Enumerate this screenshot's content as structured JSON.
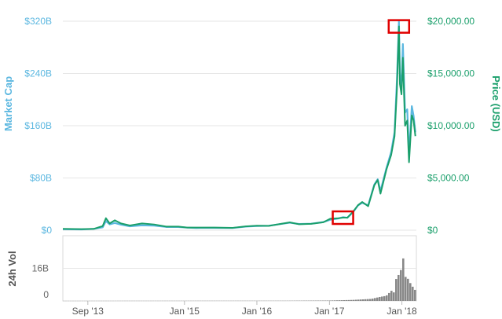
{
  "chart_data": {
    "type": "line",
    "left_axis": {
      "label": "Market Cap",
      "ticks": [
        "$0",
        "$80B",
        "$160B",
        "$240B",
        "$320B"
      ],
      "tick_values": [
        0,
        80,
        160,
        240,
        320
      ],
      "ylim": [
        0,
        320
      ],
      "unit": "billion USD"
    },
    "right_axis": {
      "label": "Price (USD)",
      "ticks": [
        "$0",
        "$5,000.00",
        "$10,000.00",
        "$15,000.00",
        "$20,000.00"
      ],
      "tick_values": [
        0,
        5000,
        10000,
        15000,
        20000
      ],
      "ylim": [
        0,
        20000
      ]
    },
    "volume_panel": {
      "label": "24h Vol",
      "ticks": [
        "0",
        "16B"
      ],
      "tick_values": [
        0,
        16
      ],
      "ylim": [
        0,
        32
      ],
      "unit": "billion USD"
    },
    "x_ticks": [
      "Sep '13",
      "Jan '15",
      "Jan '16",
      "Jan '17",
      "Jan '18"
    ],
    "x_tick_values": [
      "2013-09-01",
      "2015-01-01",
      "2016-01-01",
      "2017-01-01",
      "2018-01-01"
    ],
    "xlim": [
      "2013-04-28",
      "2018-03-15"
    ],
    "series": [
      {
        "name": "Market Cap",
        "color": "#5bb7e0",
        "unit": "billion USD",
        "x": [
          "2013-04-28",
          "2013-08-01",
          "2013-10-01",
          "2013-11-15",
          "2013-12-01",
          "2013-12-20",
          "2014-01-15",
          "2014-02-15",
          "2014-04-01",
          "2014-06-01",
          "2014-08-01",
          "2014-10-01",
          "2014-12-01",
          "2015-01-15",
          "2015-03-01",
          "2015-06-01",
          "2015-09-01",
          "2015-11-05",
          "2016-01-01",
          "2016-03-01",
          "2016-06-15",
          "2016-08-01",
          "2016-10-01",
          "2016-12-01",
          "2017-01-05",
          "2017-02-15",
          "2017-03-10",
          "2017-04-01",
          "2017-05-01",
          "2017-05-25",
          "2017-06-15",
          "2017-07-15",
          "2017-08-15",
          "2017-09-01",
          "2017-09-15",
          "2017-10-15",
          "2017-11-08",
          "2017-11-25",
          "2017-12-07",
          "2017-12-17",
          "2017-12-22",
          "2017-12-30",
          "2018-01-06",
          "2018-01-17",
          "2018-01-28",
          "2018-02-06",
          "2018-02-20",
          "2018-03-01",
          "2018-03-10"
        ],
        "values": [
          1.5,
          1.2,
          2.0,
          4.5,
          14.0,
          9.0,
          11.0,
          8.5,
          6.0,
          7.5,
          7.0,
          5.0,
          5.0,
          4.0,
          3.5,
          3.6,
          3.4,
          5.5,
          6.5,
          6.8,
          11.5,
          9.5,
          10.0,
          12.5,
          16.0,
          18.0,
          20.0,
          19.0,
          28.0,
          38.0,
          42.0,
          38.0,
          70.0,
          78.0,
          60.0,
          95.0,
          120.0,
          150.0,
          230.0,
          320.0,
          240.0,
          220.0,
          285.0,
          180.0,
          185.0,
          115.0,
          190.0,
          175.0,
          150.0
        ]
      },
      {
        "name": "Price (USD)",
        "color": "#1a9f6b",
        "x": [
          "2013-04-28",
          "2013-08-01",
          "2013-10-01",
          "2013-11-15",
          "2013-12-01",
          "2013-12-20",
          "2014-01-15",
          "2014-02-15",
          "2014-04-01",
          "2014-06-01",
          "2014-08-01",
          "2014-10-01",
          "2014-12-01",
          "2015-01-15",
          "2015-03-01",
          "2015-06-01",
          "2015-09-01",
          "2015-11-05",
          "2016-01-01",
          "2016-03-01",
          "2016-06-15",
          "2016-08-01",
          "2016-10-01",
          "2016-12-01",
          "2017-01-05",
          "2017-02-15",
          "2017-03-10",
          "2017-04-01",
          "2017-05-01",
          "2017-05-25",
          "2017-06-15",
          "2017-07-15",
          "2017-08-15",
          "2017-09-01",
          "2017-09-15",
          "2017-10-15",
          "2017-11-08",
          "2017-11-25",
          "2017-12-07",
          "2017-12-17",
          "2017-12-22",
          "2017-12-30",
          "2018-01-06",
          "2018-01-17",
          "2018-01-28",
          "2018-02-06",
          "2018-02-20",
          "2018-03-01",
          "2018-03-10"
        ],
        "values": [
          135,
          100,
          130,
          400,
          1150,
          650,
          950,
          650,
          450,
          650,
          550,
          350,
          350,
          250,
          250,
          250,
          230,
          370,
          430,
          410,
          750,
          570,
          610,
          760,
          1100,
          1150,
          1200,
          1200,
          1800,
          2400,
          2700,
          2300,
          4300,
          4800,
          3500,
          5800,
          7200,
          9000,
          13500,
          19500,
          14000,
          13000,
          16500,
          10000,
          10500,
          6500,
          11000,
          10500,
          9000
        ]
      },
      {
        "name": "24h Vol",
        "color": "#888888",
        "unit": "billion USD",
        "x": [
          "2013-04-28",
          "2016-06-01",
          "2017-01-01",
          "2017-05-01",
          "2017-08-01",
          "2017-09-15",
          "2017-10-15",
          "2017-11-10",
          "2017-11-25",
          "2017-12-07",
          "2017-12-12",
          "2017-12-17",
          "2017-12-22",
          "2017-12-28",
          "2018-01-03",
          "2018-01-10",
          "2018-01-17",
          "2018-01-25",
          "2018-02-06",
          "2018-02-15",
          "2018-02-25",
          "2018-03-05",
          "2018-03-12"
        ],
        "values": [
          0.05,
          0.1,
          0.2,
          0.5,
          1.0,
          2.0,
          2.5,
          5.0,
          4.0,
          13.0,
          10.0,
          13.5,
          20.0,
          15.0,
          16.0,
          22.0,
          14.0,
          9.0,
          12.0,
          8.0,
          7.0,
          6.0,
          5.0
        ]
      }
    ],
    "highlights": [
      {
        "x": "2017-12-17",
        "y_price": 19500
      },
      {
        "x": "2017-03-10",
        "y_price": 1200
      }
    ],
    "grid": true,
    "legend": "none"
  }
}
